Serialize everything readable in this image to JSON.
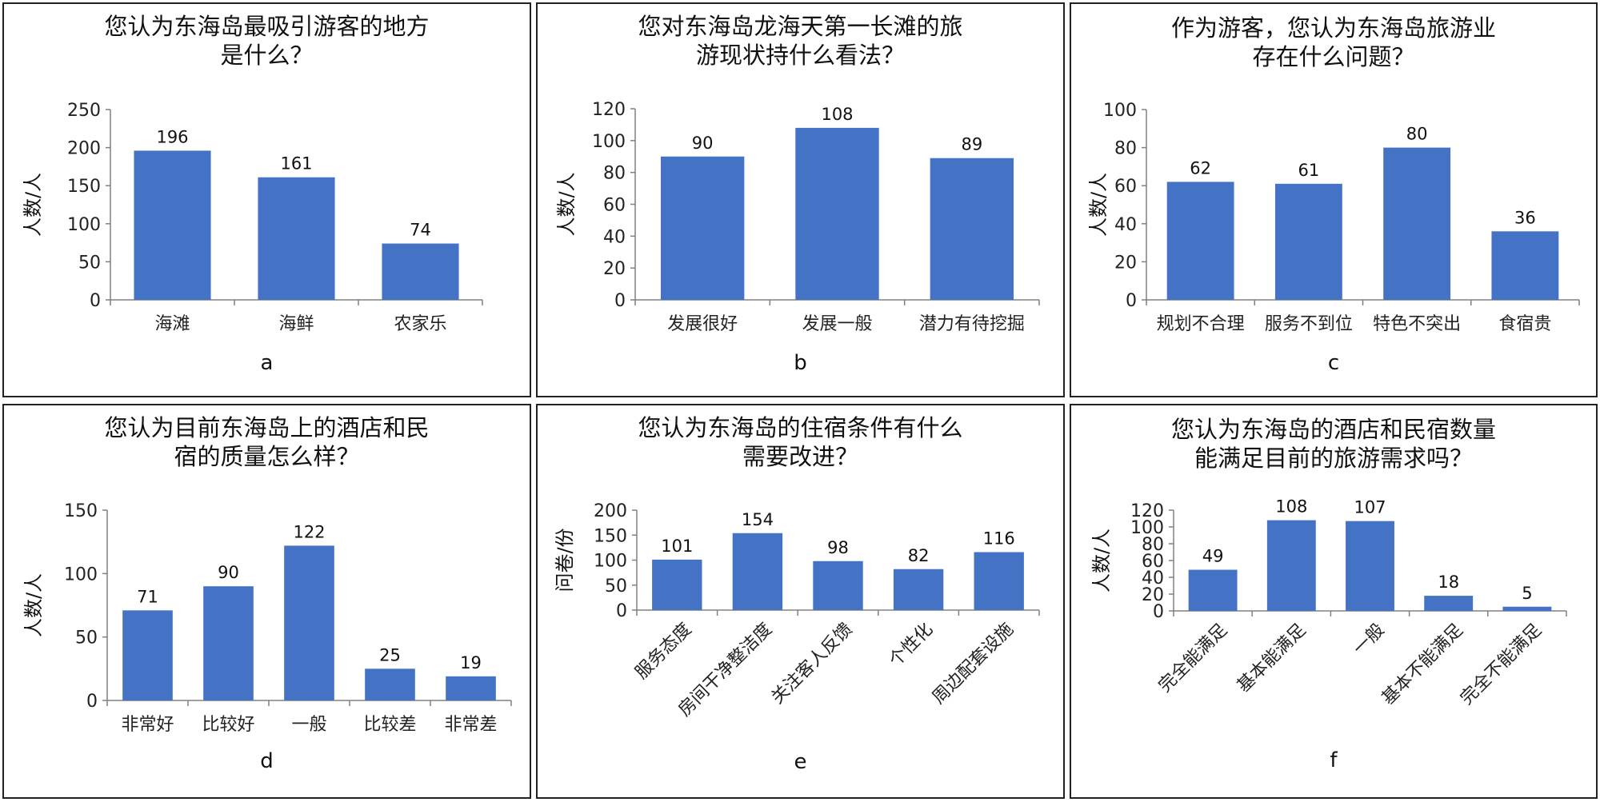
{
  "colors": {
    "bar": "#4472C4",
    "axis": "#808080",
    "text": "#222222"
  },
  "chart_data": [
    {
      "type": "bar",
      "letter": "a",
      "title_lines": [
        "您认为东海岛最吸引游客的地方",
        "是什么？"
      ],
      "ylabel": "人数/人",
      "categories": [
        "海滩",
        "海鲜",
        "农家乐"
      ],
      "values": [
        196,
        161,
        74
      ],
      "ylim": [
        0,
        250
      ],
      "yticks": [
        0,
        50,
        100,
        150,
        200,
        250
      ],
      "rotate_categories": false
    },
    {
      "type": "bar",
      "letter": "b",
      "title_lines": [
        "您对东海岛龙海天第一长滩的旅",
        "游现状持什么看法？"
      ],
      "ylabel": "人数/人",
      "categories": [
        "发展很好",
        "发展一般",
        "潜力有待挖掘"
      ],
      "values": [
        90,
        108,
        89
      ],
      "ylim": [
        0,
        120
      ],
      "yticks": [
        0,
        20,
        40,
        60,
        80,
        100,
        120
      ],
      "rotate_categories": false
    },
    {
      "type": "bar",
      "letter": "c",
      "title_lines": [
        "作为游客，您认为东海岛旅游业",
        "存在什么问题？"
      ],
      "ylabel": "人数/人",
      "categories": [
        "规划不合理",
        "服务不到位",
        "特色不突出",
        "食宿贵"
      ],
      "values": [
        62,
        61,
        80,
        36
      ],
      "ylim": [
        0,
        100
      ],
      "yticks": [
        0,
        20,
        40,
        60,
        80,
        100
      ],
      "rotate_categories": false
    },
    {
      "type": "bar",
      "letter": "d",
      "title_lines": [
        "您认为目前东海岛上的酒店和民",
        "宿的质量怎么样？"
      ],
      "ylabel": "人数/人",
      "categories": [
        "非常好",
        "比较好",
        "一般",
        "比较差",
        "非常差"
      ],
      "values": [
        71,
        90,
        122,
        25,
        19
      ],
      "ylim": [
        0,
        150
      ],
      "yticks": [
        0,
        50,
        100,
        150
      ],
      "rotate_categories": false
    },
    {
      "type": "bar",
      "letter": "e",
      "title_lines": [
        "您认为东海岛的住宿条件有什么",
        "需要改进？"
      ],
      "ylabel": "问卷/份",
      "categories": [
        "服务态度",
        "房间干净整洁度",
        "关注客人反馈",
        "个性化",
        "周边配套设施"
      ],
      "values": [
        101,
        154,
        98,
        82,
        116
      ],
      "ylim": [
        0,
        200
      ],
      "yticks": [
        0,
        50,
        100,
        150,
        200
      ],
      "rotate_categories": true
    },
    {
      "type": "bar",
      "letter": "f",
      "title_lines": [
        "您认为东海岛的酒店和民宿数量",
        "能满足目前的旅游需求吗？"
      ],
      "ylabel": "人数/人",
      "categories": [
        "完全能满足",
        "基本能满足",
        "一般",
        "基本不能满足",
        "完全不能满足"
      ],
      "values": [
        49,
        108,
        107,
        18,
        5
      ],
      "ylim": [
        0,
        120
      ],
      "yticks": [
        0,
        20,
        40,
        60,
        80,
        100,
        120
      ],
      "rotate_categories": true
    }
  ]
}
